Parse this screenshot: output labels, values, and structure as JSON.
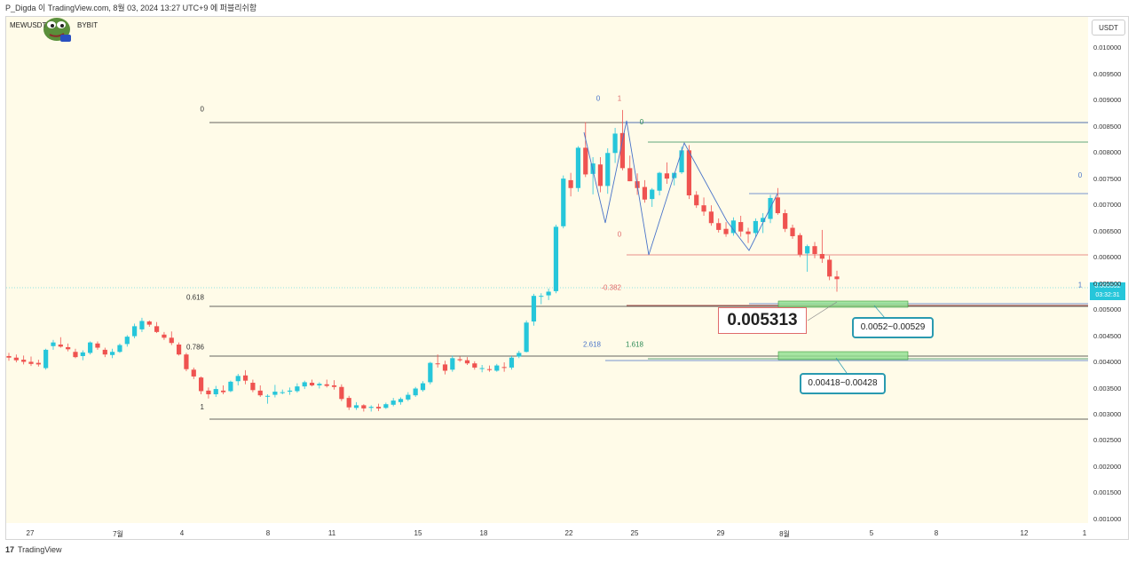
{
  "header": {
    "top_text": "P_Digda 이 TradingView.com, 8월 03, 2024 13:27 UTC+9 에 퍼블리쉬함"
  },
  "symbol": "MEWUSDT",
  "exchange": "BYBIT",
  "currency": "USDT",
  "current_price": "0.005592",
  "countdown": "03:32:31",
  "footer": {
    "brand_mark": "17",
    "brand": "TradingView"
  },
  "colors": {
    "up": "#26c6da",
    "down": "#ef5350",
    "bg": "#fffbe8",
    "zone": "#8fe08f"
  },
  "annotations": {
    "main_price": "0.005313",
    "upper_zone": "0.0052~0.00529",
    "lower_zone": "0.00418~0.00428"
  },
  "fib_labels": [
    {
      "text": "0",
      "y": 0.00879,
      "color": "#333333"
    },
    {
      "text": "0.618",
      "y": 0.0052,
      "color": "#333333"
    },
    {
      "text": "0.786",
      "y": 0.00425,
      "color": "#333333"
    },
    {
      "text": "1",
      "y": 0.0031,
      "color": "#333333"
    },
    {
      "text": "0",
      "y": 0.009,
      "color": "#4a74c9"
    },
    {
      "text": "1",
      "y": 0.009,
      "color": "#e06b6b"
    },
    {
      "text": "0",
      "y": 0.00855,
      "color": "#2e8b57"
    },
    {
      "text": "0",
      "y": 0.00753,
      "color": "#4a74c9"
    },
    {
      "text": "0",
      "y": 0.0064,
      "color": "#e06b6b"
    },
    {
      "text": "-0.382",
      "y": 0.00538,
      "color": "#e06b6b"
    },
    {
      "text": "2.618",
      "y": 0.0043,
      "color": "#4a74c9"
    },
    {
      "text": "1.618",
      "y": 0.0043,
      "color": "#2e8b57"
    },
    {
      "text": "1",
      "y": 0.00543,
      "color": "#4a74c9"
    }
  ],
  "chart_data": {
    "type": "candlestick",
    "y_axis": {
      "ylim": [
        0.00093,
        0.0106
      ],
      "ticks": [
        "0.010000",
        "0.009500",
        "0.009000",
        "0.008500",
        "0.008000",
        "0.007500",
        "0.007000",
        "0.006500",
        "0.006000",
        "0.005500",
        "0.005000",
        "0.004500",
        "0.004000",
        "0.003500",
        "0.003000",
        "0.002500",
        "0.002000",
        "0.001500",
        "0.001000"
      ]
    },
    "x_axis": {
      "ticks": [
        "27",
        "7월",
        "4",
        "8",
        "11",
        "15",
        "18",
        "22",
        "25",
        "29",
        "8월",
        "5",
        "8",
        "12",
        "1"
      ]
    },
    "candles": [
      [
        0.00412,
        0.00418,
        0.00403,
        0.00409
      ],
      [
        0.00409,
        0.00415,
        0.004,
        0.00404
      ],
      [
        0.00405,
        0.00413,
        0.00396,
        0.00401
      ],
      [
        0.00401,
        0.00411,
        0.00393,
        0.00397
      ],
      [
        0.00399,
        0.00405,
        0.00392,
        0.00396
      ],
      [
        0.00389,
        0.00426,
        0.00386,
        0.00424
      ],
      [
        0.00431,
        0.00443,
        0.00424,
        0.00438
      ],
      [
        0.00434,
        0.00448,
        0.00428,
        0.0043
      ],
      [
        0.00429,
        0.00436,
        0.00421,
        0.00425
      ],
      [
        0.0042,
        0.00426,
        0.00408,
        0.0041
      ],
      [
        0.00412,
        0.00423,
        0.00404,
        0.00419
      ],
      [
        0.00418,
        0.0044,
        0.00415,
        0.00438
      ],
      [
        0.00436,
        0.0044,
        0.00424,
        0.00428
      ],
      [
        0.00424,
        0.00428,
        0.0041,
        0.00415
      ],
      [
        0.00414,
        0.00426,
        0.00408,
        0.0042
      ],
      [
        0.0042,
        0.00436,
        0.00418,
        0.00433
      ],
      [
        0.00435,
        0.00452,
        0.0043,
        0.00449
      ],
      [
        0.0045,
        0.00474,
        0.00446,
        0.00469
      ],
      [
        0.00463,
        0.00485,
        0.00458,
        0.00479
      ],
      [
        0.00478,
        0.0048,
        0.00468,
        0.00472
      ],
      [
        0.00469,
        0.00477,
        0.00456,
        0.00458
      ],
      [
        0.00453,
        0.00458,
        0.00443,
        0.00447
      ],
      [
        0.00447,
        0.00459,
        0.00433,
        0.00437
      ],
      [
        0.00434,
        0.00438,
        0.00413,
        0.00415
      ],
      [
        0.00415,
        0.00418,
        0.00383,
        0.00387
      ],
      [
        0.00386,
        0.0039,
        0.00368,
        0.00373
      ],
      [
        0.00371,
        0.00373,
        0.00339,
        0.00345
      ],
      [
        0.00346,
        0.00352,
        0.00331,
        0.00339
      ],
      [
        0.00339,
        0.00355,
        0.00334,
        0.00349
      ],
      [
        0.00346,
        0.00356,
        0.00339,
        0.00343
      ],
      [
        0.00345,
        0.00365,
        0.00343,
        0.00363
      ],
      [
        0.00364,
        0.00378,
        0.00356,
        0.00374
      ],
      [
        0.00375,
        0.00385,
        0.00358,
        0.00365
      ],
      [
        0.00361,
        0.00367,
        0.00343,
        0.00347
      ],
      [
        0.00346,
        0.00356,
        0.00334,
        0.00337
      ],
      [
        0.00336,
        0.00339,
        0.00321,
        0.00336
      ],
      [
        0.00338,
        0.00357,
        0.00333,
        0.00344
      ],
      [
        0.00343,
        0.00348,
        0.00339,
        0.00343
      ],
      [
        0.00344,
        0.00352,
        0.00338,
        0.00346
      ],
      [
        0.00345,
        0.0036,
        0.00342,
        0.00354
      ],
      [
        0.00354,
        0.00365,
        0.00349,
        0.00362
      ],
      [
        0.00361,
        0.00367,
        0.00354,
        0.00356
      ],
      [
        0.00356,
        0.00362,
        0.0035,
        0.00359
      ],
      [
        0.00358,
        0.00367,
        0.00352,
        0.00355
      ],
      [
        0.00356,
        0.00366,
        0.00348,
        0.00353
      ],
      [
        0.00353,
        0.00358,
        0.00326,
        0.0033
      ],
      [
        0.00332,
        0.00336,
        0.00309,
        0.00314
      ],
      [
        0.00313,
        0.00324,
        0.00309,
        0.00318
      ],
      [
        0.00318,
        0.0032,
        0.00306,
        0.00312
      ],
      [
        0.00313,
        0.00318,
        0.00306,
        0.00315
      ],
      [
        0.00315,
        0.00321,
        0.00307,
        0.00312
      ],
      [
        0.00313,
        0.00323,
        0.00311,
        0.0032
      ],
      [
        0.00319,
        0.00332,
        0.00316,
        0.00327
      ],
      [
        0.00324,
        0.00333,
        0.00319,
        0.0033
      ],
      [
        0.00329,
        0.00343,
        0.00326,
        0.00338
      ],
      [
        0.00337,
        0.00353,
        0.00334,
        0.0035
      ],
      [
        0.00347,
        0.00364,
        0.00344,
        0.0036
      ],
      [
        0.00362,
        0.00401,
        0.00358,
        0.00399
      ],
      [
        0.00398,
        0.00415,
        0.0039,
        0.00397
      ],
      [
        0.00396,
        0.00403,
        0.00377,
        0.00384
      ],
      [
        0.00386,
        0.00413,
        0.00382,
        0.00408
      ],
      [
        0.00406,
        0.00411,
        0.00401,
        0.00404
      ],
      [
        0.00404,
        0.0041,
        0.00395,
        0.00398
      ],
      [
        0.00398,
        0.00402,
        0.00386,
        0.0039
      ],
      [
        0.00388,
        0.00395,
        0.00381,
        0.00389
      ],
      [
        0.00387,
        0.00394,
        0.00382,
        0.00386
      ],
      [
        0.00384,
        0.00397,
        0.00382,
        0.00394
      ],
      [
        0.00391,
        0.004,
        0.00382,
        0.0039
      ],
      [
        0.0039,
        0.00412,
        0.00386,
        0.00409
      ],
      [
        0.00411,
        0.00422,
        0.00408,
        0.00418
      ],
      [
        0.0042,
        0.0048,
        0.00419,
        0.00476
      ],
      [
        0.00478,
        0.00531,
        0.0047,
        0.00527
      ],
      [
        0.00526,
        0.00532,
        0.00511,
        0.00527
      ],
      [
        0.00528,
        0.00541,
        0.00519,
        0.00535
      ],
      [
        0.00536,
        0.00663,
        0.00532,
        0.00659
      ],
      [
        0.0066,
        0.00757,
        0.00656,
        0.00751
      ],
      [
        0.00748,
        0.00762,
        0.00717,
        0.00733
      ],
      [
        0.00733,
        0.00813,
        0.00726,
        0.0081
      ],
      [
        0.0081,
        0.00859,
        0.00754,
        0.00759
      ],
      [
        0.0076,
        0.00792,
        0.00721,
        0.0078
      ],
      [
        0.00778,
        0.00792,
        0.00725,
        0.00737
      ],
      [
        0.00737,
        0.00809,
        0.00722,
        0.008
      ],
      [
        0.008,
        0.00848,
        0.00781,
        0.00837
      ],
      [
        0.00838,
        0.00882,
        0.00767,
        0.00771
      ],
      [
        0.00771,
        0.00795,
        0.00746,
        0.00746
      ],
      [
        0.00746,
        0.00761,
        0.0072,
        0.00733
      ],
      [
        0.00735,
        0.00748,
        0.00705,
        0.00711
      ],
      [
        0.00712,
        0.00733,
        0.00697,
        0.0073
      ],
      [
        0.00728,
        0.00764,
        0.00719,
        0.00762
      ],
      [
        0.00761,
        0.00782,
        0.00741,
        0.00751
      ],
      [
        0.00752,
        0.00762,
        0.00738,
        0.00762
      ],
      [
        0.00763,
        0.00812,
        0.0076,
        0.00805
      ],
      [
        0.00805,
        0.00815,
        0.00712,
        0.00719
      ],
      [
        0.0072,
        0.00727,
        0.00695,
        0.007
      ],
      [
        0.007,
        0.00715,
        0.0068,
        0.00688
      ],
      [
        0.00688,
        0.007,
        0.00661,
        0.00666
      ],
      [
        0.00666,
        0.00675,
        0.00648,
        0.00653
      ],
      [
        0.00655,
        0.00668,
        0.0064,
        0.00645
      ],
      [
        0.00647,
        0.00677,
        0.00642,
        0.00671
      ],
      [
        0.00668,
        0.0068,
        0.0064,
        0.0065
      ],
      [
        0.0065,
        0.00657,
        0.00628,
        0.00645
      ],
      [
        0.00647,
        0.00675,
        0.0064,
        0.0067
      ],
      [
        0.00668,
        0.00685,
        0.00647,
        0.00676
      ],
      [
        0.00674,
        0.0072,
        0.00666,
        0.00714
      ],
      [
        0.00715,
        0.00733,
        0.00682,
        0.00685
      ],
      [
        0.00685,
        0.00692,
        0.00649,
        0.00655
      ],
      [
        0.00657,
        0.00663,
        0.00636,
        0.00641
      ],
      [
        0.00643,
        0.00647,
        0.00601,
        0.00606
      ],
      [
        0.00608,
        0.00625,
        0.00573,
        0.00622
      ],
      [
        0.00622,
        0.0063,
        0.00599,
        0.00607
      ],
      [
        0.00607,
        0.00653,
        0.0059,
        0.00598
      ],
      [
        0.00596,
        0.00604,
        0.00557,
        0.00564
      ],
      [
        0.00564,
        0.00575,
        0.00535,
        0.00559
      ]
    ]
  }
}
